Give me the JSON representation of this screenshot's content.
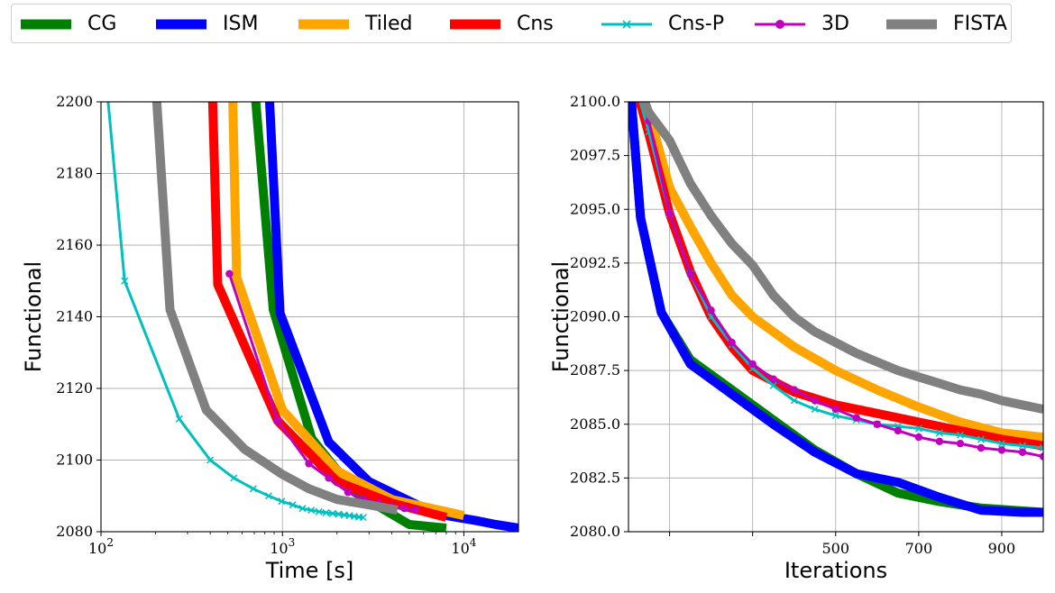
{
  "legend": [
    {
      "name": "CG",
      "color": "#008000",
      "style": "thick"
    },
    {
      "name": "ISM",
      "color": "#0000ff",
      "style": "thick"
    },
    {
      "name": "Tiled",
      "color": "#ffa500",
      "style": "thick"
    },
    {
      "name": "Cns",
      "color": "#ff0000",
      "style": "thick"
    },
    {
      "name": "Cns-P",
      "color": "#00bfbf",
      "style": "thin-x"
    },
    {
      "name": "3D",
      "color": "#bf00bf",
      "style": "thin-o"
    },
    {
      "name": "FISTA",
      "color": "#808080",
      "style": "thick"
    }
  ],
  "chart_data": [
    {
      "type": "line",
      "xscale": "log",
      "xlabel": "Time [s]",
      "ylabel": "Functional",
      "xlim": [
        100,
        20000
      ],
      "ylim": [
        2080,
        2200
      ],
      "grid": true,
      "xticks": [
        100,
        1000,
        10000
      ],
      "xtick_labels": [
        "10^2",
        "10^3",
        "10^4"
      ],
      "yticks": [
        2080,
        2100,
        2120,
        2140,
        2160,
        2180,
        2200
      ],
      "ytick_labels": [
        "2080",
        "2100",
        "2120",
        "2140",
        "2160",
        "2180",
        "2200"
      ],
      "series": [
        {
          "name": "CG",
          "x": [
            700,
            890,
            1450,
            2500,
            5000,
            8000
          ],
          "y": [
            2205,
            2142,
            2106,
            2091,
            2082,
            2081
          ]
        },
        {
          "name": "ISM",
          "x": [
            840,
            970,
            1800,
            3000,
            7000,
            12000,
            15000,
            20000
          ],
          "y": [
            2205,
            2141,
            2105,
            2094,
            2085,
            2083,
            2082,
            2081
          ]
        },
        {
          "name": "Tiled",
          "x": [
            530,
            560,
            1000,
            2000,
            4000,
            10000
          ],
          "y": [
            2205,
            2151,
            2114,
            2097,
            2089,
            2084.5
          ]
        },
        {
          "name": "Cns",
          "x": [
            410,
            440,
            940,
            2000,
            4000,
            8000
          ],
          "y": [
            2205,
            2149,
            2111,
            2094,
            2088,
            2084
          ]
        },
        {
          "name": "Cns-P",
          "x": [
            105,
            135,
            270,
            400,
            540,
            690,
            840,
            990,
            1140,
            1290,
            1440,
            1590,
            1740,
            1890,
            2040,
            2190,
            2340,
            2490,
            2640,
            2790
          ],
          "y": [
            2210,
            2150,
            2111.5,
            2100,
            2095,
            2092,
            2090,
            2088.5,
            2087.5,
            2086.5,
            2086,
            2085.6,
            2085.3,
            2085.1,
            2084.9,
            2084.7,
            2084.5,
            2084.3,
            2084.1,
            2084
          ]
        },
        {
          "name": "3D",
          "x": [
            510,
            940,
            1400,
            1800,
            2300,
            2800,
            3400,
            4000,
            4700,
            5400
          ],
          "y": [
            2152,
            2111,
            2099,
            2095,
            2091,
            2089,
            2088,
            2087,
            2086.5,
            2086
          ]
        },
        {
          "name": "FISTA",
          "x": [
            200,
            240,
            380,
            620,
            1000,
            1400,
            2000,
            3000,
            4300
          ],
          "y": [
            2205,
            2142,
            2114,
            2103,
            2096,
            2092,
            2089,
            2087.5,
            2086
          ]
        }
      ]
    },
    {
      "type": "line",
      "xscale": "linear",
      "xlabel": "Iterations",
      "ylabel": "Functional",
      "xlim": [
        1,
        1000
      ],
      "ylim": [
        2080,
        2100
      ],
      "grid": true,
      "xticks": [
        100,
        300,
        500,
        700,
        900
      ],
      "xtick_labels": [
        "",
        "",
        "500",
        "700",
        "900"
      ],
      "yticks": [
        2080,
        2082.5,
        2085,
        2087.5,
        2090,
        2092.5,
        2095,
        2097.5,
        2100
      ],
      "ytick_labels": [
        "2080.0",
        "2082.5",
        "2085.0",
        "2087.5",
        "2090.0",
        "2092.5",
        "2095.0",
        "2097.5",
        "2100.0"
      ],
      "series": [
        {
          "name": "CG",
          "x": [
            0,
            30,
            80,
            150,
            250,
            350,
            450,
            550,
            650,
            750,
            850,
            1000
          ],
          "y": [
            2102,
            2094.6,
            2090.2,
            2088,
            2086.6,
            2085.2,
            2083.8,
            2082.7,
            2081.8,
            2081.4,
            2081.1,
            2080.9
          ]
        },
        {
          "name": "ISM",
          "x": [
            0,
            30,
            80,
            150,
            250,
            350,
            450,
            550,
            650,
            750,
            850,
            950,
            1000
          ],
          "y": [
            2102,
            2094.6,
            2090.2,
            2087.8,
            2086.4,
            2085,
            2083.7,
            2082.7,
            2082.3,
            2081.6,
            2081,
            2080.9,
            2080.9
          ]
        },
        {
          "name": "Tiled",
          "x": [
            0,
            60,
            100,
            150,
            200,
            250,
            300,
            400,
            500,
            600,
            700,
            800,
            900,
            1000
          ],
          "y": [
            2102,
            2098.8,
            2096,
            2094.2,
            2092.5,
            2091,
            2090,
            2088.6,
            2087.5,
            2086.6,
            2085.8,
            2085.1,
            2084.6,
            2084.4
          ]
        },
        {
          "name": "Cns",
          "x": [
            0,
            50,
            100,
            150,
            200,
            250,
            300,
            400,
            500,
            600,
            700,
            800,
            900,
            1000
          ],
          "y": [
            2102,
            2098.5,
            2094.8,
            2092.1,
            2090,
            2088.6,
            2087.5,
            2086.5,
            2085.9,
            2085.5,
            2085.1,
            2084.7,
            2084.3,
            2084
          ]
        },
        {
          "name": "Cns-P",
          "x": [
            0,
            50,
            100,
            150,
            200,
            250,
            300,
            350,
            400,
            450,
            500,
            550,
            600,
            650,
            700,
            750,
            800,
            850,
            900,
            950,
            1000
          ],
          "y": [
            2102,
            2098.6,
            2094.8,
            2092,
            2090,
            2088.7,
            2087.6,
            2086.8,
            2086.1,
            2085.7,
            2085.4,
            2085.2,
            2085,
            2084.9,
            2084.8,
            2084.6,
            2084.5,
            2084.3,
            2084.1,
            2084,
            2083.9
          ]
        },
        {
          "name": "3D",
          "x": [
            0,
            50,
            100,
            150,
            200,
            250,
            300,
            350,
            400,
            450,
            500,
            550,
            600,
            650,
            700,
            750,
            800,
            850,
            900,
            950,
            1000
          ],
          "y": [
            2102,
            2099.1,
            2094.8,
            2092,
            2090.3,
            2088.8,
            2087.8,
            2087.1,
            2086.6,
            2086.1,
            2085.7,
            2085.3,
            2085,
            2084.7,
            2084.4,
            2084.2,
            2084.1,
            2083.9,
            2083.8,
            2083.7,
            2083.5
          ]
        },
        {
          "name": "FISTA",
          "x": [
            0,
            50,
            100,
            150,
            200,
            250,
            300,
            350,
            400,
            450,
            500,
            550,
            600,
            650,
            700,
            750,
            800,
            850,
            900,
            950,
            1000
          ],
          "y": [
            2102,
            2099.5,
            2098.2,
            2096.2,
            2094.7,
            2093.4,
            2092.4,
            2091,
            2090,
            2089.3,
            2088.8,
            2088.3,
            2087.9,
            2087.5,
            2087.2,
            2086.9,
            2086.6,
            2086.4,
            2086.1,
            2085.9,
            2085.7
          ]
        }
      ]
    }
  ]
}
